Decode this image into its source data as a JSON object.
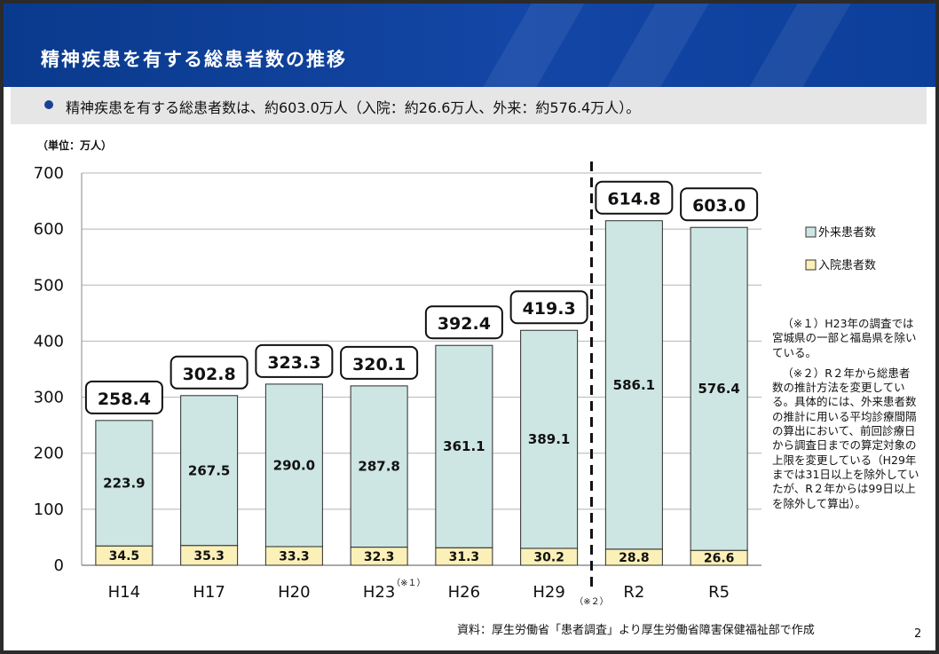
{
  "title": "精神疾患を有する総患者数の推移",
  "summary": "精神疾患を有する総患者数は、約603.0万人（入院：約26.6万人、外来：約576.4万人）。",
  "unit_label": "（単位：万人）",
  "source": "資料：厚生労働省「患者調査」より厚生労働省障害保健福祉部で作成",
  "page_number": "2",
  "notes": [
    "（※１）H23年の調査では宮城県の一部と福島県を除いている。",
    "（※２）R２年から総患者数の推計方法を変更している。具体的には、外来患者数の推計に用いる平均診療間隔の算出において、前回診療日から調査日までの算定対象の上限を変更している（H29年までは31日以上を除外していたが、R２年からは99日以上を除外して算出）。"
  ],
  "colors": {
    "header": "#0f3f9a",
    "outpatient": "#cde6e3",
    "inpatient": "#fbf0b8",
    "bar_border": "#2b2b2b"
  },
  "chart_data": {
    "type": "bar",
    "stacked": true,
    "categories": [
      "H14",
      "H17",
      "H20",
      "H23",
      "H26",
      "H29",
      "R2",
      "R5"
    ],
    "category_marks": [
      "",
      "",
      "",
      "（※１）",
      "",
      "",
      "",
      ""
    ],
    "break_marker": {
      "after_category": "H29",
      "label": "（※２）"
    },
    "series": [
      {
        "name": "入院患者数",
        "values": [
          34.5,
          35.3,
          33.3,
          32.3,
          31.3,
          30.2,
          28.8,
          26.6
        ]
      },
      {
        "name": "外来患者数",
        "values": [
          223.9,
          267.5,
          290.0,
          287.8,
          361.1,
          389.1,
          586.1,
          576.4
        ]
      }
    ],
    "totals": [
      258.4,
      302.8,
      323.3,
      320.1,
      392.4,
      419.3,
      614.8,
      603.0
    ],
    "total_labels": [
      "258.4",
      "302.8",
      "323.3",
      "320.1",
      "392.4",
      "419.3",
      "614.8",
      "603.0"
    ],
    "inpatient_labels": [
      "34.5",
      "35.3",
      "33.3",
      "32.3",
      "31.3",
      "30.2",
      "28.8",
      "26.6"
    ],
    "outpatient_labels": [
      "223.9",
      "267.5",
      "290.0",
      "287.8",
      "361.1",
      "389.1",
      "586.1",
      "576.4"
    ],
    "legend": [
      "外来患者数",
      "入院患者数"
    ],
    "yticks": [
      0,
      100,
      200,
      300,
      400,
      500,
      600,
      700
    ],
    "ylim": [
      0,
      700
    ],
    "grid": true,
    "legend_position": "right"
  }
}
